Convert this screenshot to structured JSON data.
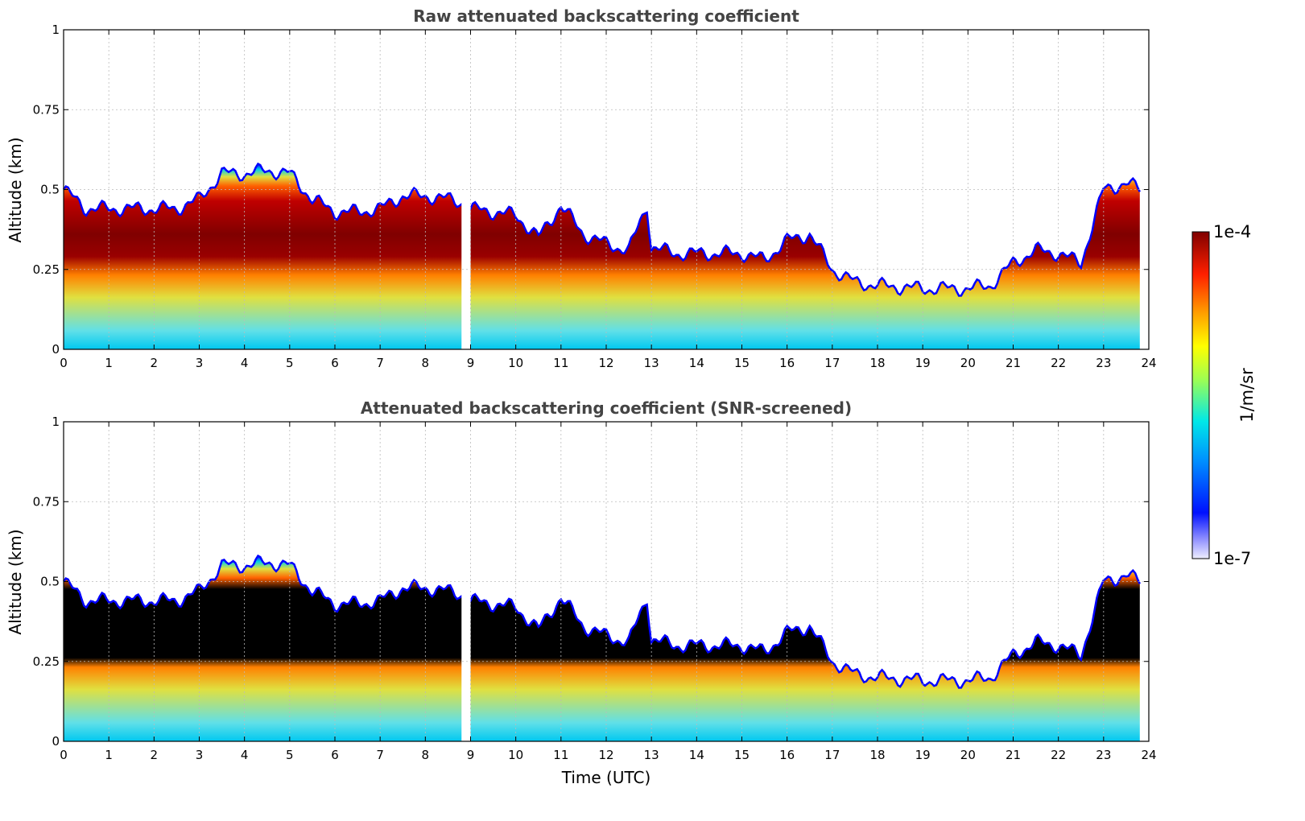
{
  "chart_data": [
    {
      "type": "heatmap",
      "title": "Raw attenuated backscattering coefficient",
      "xlabel": "",
      "ylabel": "Altitude (km)",
      "xlim": [
        0,
        24
      ],
      "ylim": [
        0,
        1
      ],
      "x_ticks": [
        "0",
        "1",
        "2",
        "3",
        "4",
        "5",
        "6",
        "7",
        "8",
        "9",
        "10",
        "11",
        "12",
        "13",
        "14",
        "15",
        "16",
        "17",
        "18",
        "19",
        "20",
        "21",
        "22",
        "23",
        "24"
      ],
      "y_ticks": [
        "0",
        "0.25",
        "0.5",
        "0.75",
        "1"
      ],
      "grid": true,
      "gaps_utc": [
        [
          8.8,
          9.0
        ]
      ],
      "layer_top_km": [
        [
          0,
          0.5
        ],
        [
          0.5,
          0.44
        ],
        [
          1,
          0.44
        ],
        [
          1.5,
          0.44
        ],
        [
          2,
          0.44
        ],
        [
          2.5,
          0.44
        ],
        [
          3,
          0.47
        ],
        [
          3.5,
          0.55
        ],
        [
          4,
          0.55
        ],
        [
          4.5,
          0.56
        ],
        [
          5,
          0.55
        ],
        [
          5.5,
          0.47
        ],
        [
          6,
          0.43
        ],
        [
          6.5,
          0.43
        ],
        [
          7,
          0.44
        ],
        [
          7.5,
          0.48
        ],
        [
          8,
          0.48
        ],
        [
          8.5,
          0.47
        ],
        [
          8.8,
          0.46
        ],
        [
          9,
          0.44
        ],
        [
          9.5,
          0.43
        ],
        [
          10,
          0.42
        ],
        [
          10.5,
          0.35
        ],
        [
          11,
          0.45
        ],
        [
          11.5,
          0.36
        ],
        [
          12,
          0.33
        ],
        [
          12.5,
          0.31
        ],
        [
          12.9,
          0.45
        ],
        [
          13,
          0.32
        ],
        [
          13.5,
          0.3
        ],
        [
          14,
          0.3
        ],
        [
          14.5,
          0.3
        ],
        [
          15,
          0.3
        ],
        [
          15.5,
          0.28
        ],
        [
          16,
          0.34
        ],
        [
          16.5,
          0.36
        ],
        [
          17,
          0.25
        ],
        [
          17.5,
          0.21
        ],
        [
          18,
          0.2
        ],
        [
          19,
          0.19
        ],
        [
          20,
          0.19
        ],
        [
          20.5,
          0.2
        ],
        [
          21,
          0.27
        ],
        [
          21.5,
          0.31
        ],
        [
          22,
          0.3
        ],
        [
          22.5,
          0.27
        ],
        [
          23,
          0.5
        ],
        [
          23.5,
          0.52
        ],
        [
          23.8,
          0.5
        ]
      ],
      "colorbar": {
        "min_label": "1e-7",
        "max_label": "1e-4",
        "label": "1/m/sr",
        "scale": "log"
      }
    },
    {
      "type": "heatmap",
      "title": "Attenuated backscattering coefficient (SNR-screened)",
      "xlabel": "Time (UTC)",
      "ylabel": "Altitude (km)",
      "xlim": [
        0,
        24
      ],
      "ylim": [
        0,
        1
      ],
      "x_ticks": [
        "0",
        "1",
        "2",
        "3",
        "4",
        "5",
        "6",
        "7",
        "8",
        "9",
        "10",
        "11",
        "12",
        "13",
        "14",
        "15",
        "16",
        "17",
        "18",
        "19",
        "20",
        "21",
        "22",
        "23",
        "24"
      ],
      "y_ticks": [
        "0",
        "0.25",
        "0.5",
        "0.75",
        "1"
      ],
      "grid": true,
      "gaps_utc": [
        [
          8.8,
          9.0
        ]
      ],
      "saturated_color": "#000000"
    }
  ],
  "colors": {
    "saturated": "#000000",
    "title_text": "#444444",
    "grid": "#bbbbbb"
  }
}
